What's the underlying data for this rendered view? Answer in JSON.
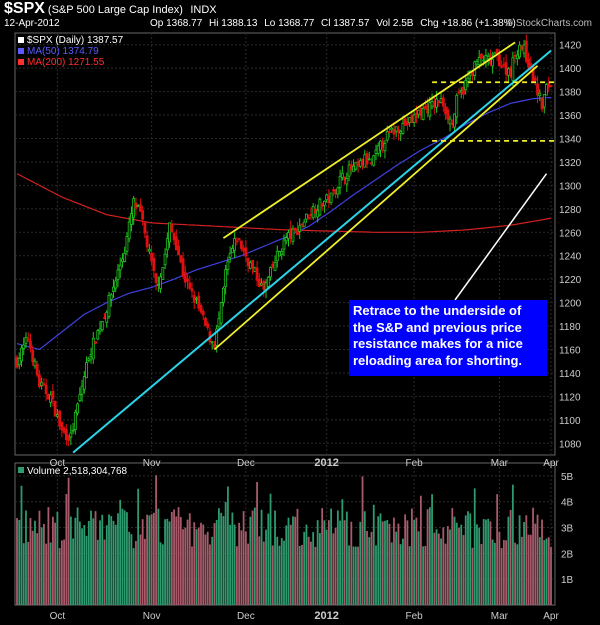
{
  "header": {
    "symbol": "$SPX",
    "name": "(S&P 500 Large Cap Index)",
    "exchange": "INDX",
    "date": "12-Apr-2012",
    "open": "Op 1368.77",
    "high": "Hi 1388.13",
    "low": "Lo 1368.77",
    "close": "Cl 1387.57",
    "volume": "Vol 2.5B",
    "change": "Chg +18.86 (+1.38%)",
    "brand": "© StockCharts.com"
  },
  "annotation": {
    "text": "Retrace to the underside of the S&P and  previous price resistance makes for a nice reloading area for shorting."
  },
  "chart_data": [
    {
      "type": "candlestick",
      "legend": [
        {
          "label": "$SPX (Daily) 1387.57",
          "color": "#ffffff"
        },
        {
          "label": "MA(50) 1374.79",
          "color": "#5a5aff"
        },
        {
          "label": "MA(200) 1271.55",
          "color": "#ff3030"
        }
      ],
      "x_tick_labels": [
        "Oct",
        "Nov",
        "Dec",
        "2012",
        "Feb",
        "Mar",
        "Apr"
      ],
      "ylim": [
        1070,
        1430
      ],
      "y_ticks": [
        1080,
        1100,
        1120,
        1140,
        1160,
        1180,
        1200,
        1220,
        1240,
        1260,
        1280,
        1300,
        1320,
        1340,
        1360,
        1380,
        1400,
        1420
      ],
      "price_path": [
        [
          0,
          1150
        ],
        [
          5,
          1170
        ],
        [
          10,
          1130
        ],
        [
          15,
          1120
        ],
        [
          20,
          1090
        ],
        [
          24,
          1085
        ],
        [
          28,
          1120
        ],
        [
          32,
          1155
        ],
        [
          36,
          1175
        ],
        [
          40,
          1195
        ],
        [
          44,
          1220
        ],
        [
          48,
          1245
        ],
        [
          52,
          1285
        ],
        [
          55,
          1275
        ],
        [
          58,
          1250
        ],
        [
          62,
          1215
        ],
        [
          65,
          1230
        ],
        [
          68,
          1265
        ],
        [
          71,
          1250
        ],
        [
          74,
          1225
        ],
        [
          77,
          1210
        ],
        [
          80,
          1200
        ],
        [
          83,
          1185
        ],
        [
          86,
          1170
        ],
        [
          88,
          1165
        ],
        [
          91,
          1195
        ],
        [
          93,
          1225
        ],
        [
          95,
          1240
        ],
        [
          98,
          1255
        ],
        [
          100,
          1248
        ],
        [
          103,
          1236
        ],
        [
          106,
          1225
        ],
        [
          110,
          1210
        ],
        [
          113,
          1225
        ],
        [
          116,
          1240
        ],
        [
          120,
          1255
        ],
        [
          124,
          1260
        ],
        [
          128,
          1270
        ],
        [
          132,
          1280
        ],
        [
          136,
          1285
        ],
        [
          140,
          1290
        ],
        [
          144,
          1305
        ],
        [
          148,
          1313
        ],
        [
          152,
          1315
        ],
        [
          155,
          1322
        ],
        [
          158,
          1318
        ],
        [
          161,
          1330
        ],
        [
          164,
          1340
        ],
        [
          167,
          1345
        ],
        [
          170,
          1350
        ],
        [
          173,
          1352
        ],
        [
          176,
          1355
        ],
        [
          179,
          1362
        ],
        [
          182,
          1365
        ],
        [
          185,
          1368
        ],
        [
          188,
          1372
        ],
        [
          190,
          1370
        ],
        [
          192,
          1360
        ],
        [
          194,
          1352
        ],
        [
          196,
          1372
        ],
        [
          199,
          1382
        ],
        [
          202,
          1395
        ],
        [
          205,
          1405
        ],
        [
          208,
          1408
        ],
        [
          211,
          1405
        ],
        [
          214,
          1410
        ],
        [
          217,
          1400
        ],
        [
          220,
          1398
        ],
        [
          222,
          1412
        ],
        [
          224,
          1420
        ],
        [
          226,
          1415
        ],
        [
          228,
          1405
        ],
        [
          230,
          1392
        ],
        [
          232,
          1380
        ],
        [
          234,
          1368
        ],
        [
          236,
          1383
        ],
        [
          238,
          1387
        ]
      ],
      "ma50_path": [
        [
          0,
          1165
        ],
        [
          10,
          1160
        ],
        [
          20,
          1175
        ],
        [
          30,
          1190
        ],
        [
          40,
          1200
        ],
        [
          50,
          1208
        ],
        [
          60,
          1213
        ],
        [
          70,
          1220
        ],
        [
          80,
          1228
        ],
        [
          90,
          1234
        ],
        [
          100,
          1240
        ],
        [
          110,
          1248
        ],
        [
          120,
          1256
        ],
        [
          130,
          1265
        ],
        [
          140,
          1278
        ],
        [
          150,
          1292
        ],
        [
          160,
          1305
        ],
        [
          170,
          1318
        ],
        [
          180,
          1330
        ],
        [
          190,
          1340
        ],
        [
          200,
          1352
        ],
        [
          210,
          1362
        ],
        [
          220,
          1370
        ],
        [
          230,
          1374
        ],
        [
          238,
          1375
        ]
      ],
      "ma200_path": [
        [
          0,
          1310
        ],
        [
          20,
          1290
        ],
        [
          40,
          1275
        ],
        [
          60,
          1268
        ],
        [
          80,
          1266
        ],
        [
          100,
          1264
        ],
        [
          120,
          1262
        ],
        [
          140,
          1261
        ],
        [
          160,
          1260
        ],
        [
          180,
          1260
        ],
        [
          200,
          1262
        ],
        [
          220,
          1266
        ],
        [
          238,
          1272
        ]
      ],
      "support_line": [
        [
          25,
          1072
        ],
        [
          238,
          1415
        ]
      ],
      "channel_upper": [
        [
          92,
          1255
        ],
        [
          222,
          1422
        ]
      ],
      "channel_lower": [
        [
          88,
          1160
        ],
        [
          232,
          1402
        ]
      ],
      "resistance_lines": [
        1388,
        1338
      ],
      "resistance_x_start": 185
    },
    {
      "type": "bar",
      "legend": [
        {
          "label": "Volume 2,518,304,768",
          "color": "#ffffff"
        }
      ],
      "y_tick_labels": [
        "1B",
        "2B",
        "3B",
        "4B",
        "5B"
      ],
      "ylim": [
        0,
        5.5
      ],
      "x_tick_labels": [
        "Oct",
        "Nov",
        "Dec",
        "2012",
        "Feb",
        "Mar",
        "Apr"
      ]
    }
  ]
}
